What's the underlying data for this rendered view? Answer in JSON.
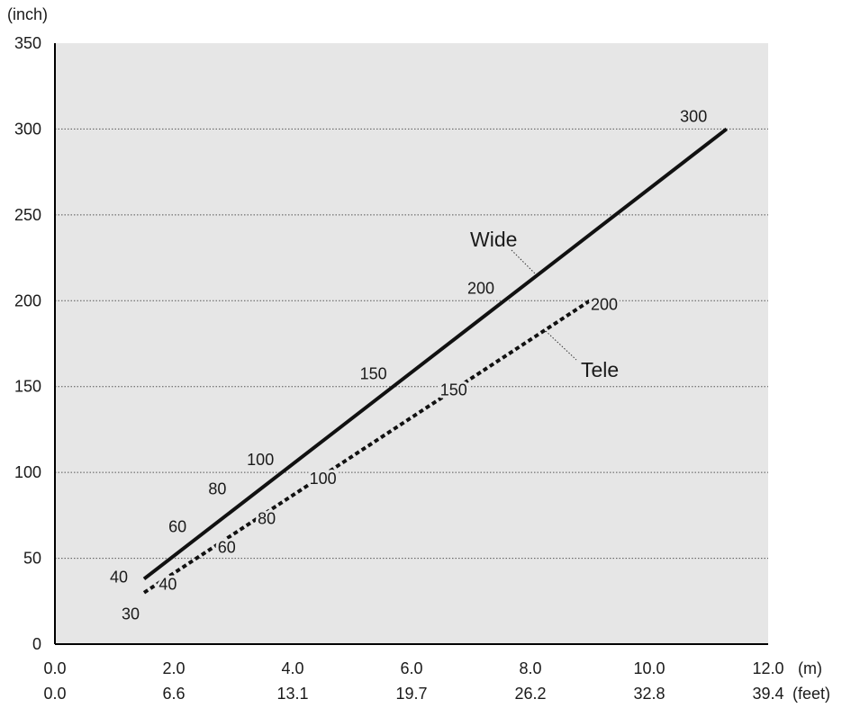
{
  "chart_data": {
    "type": "line",
    "y_unit": "(inch)",
    "x_unit_m": "(m)",
    "x_unit_feet": "(feet)",
    "ylim": [
      0,
      350
    ],
    "y_ticks": [
      "0",
      "50",
      "100",
      "150",
      "200",
      "250",
      "300",
      "350"
    ],
    "xlim": [
      0,
      12
    ],
    "x_ticks_m": [
      "0.0",
      "2.0",
      "4.0",
      "6.0",
      "8.0",
      "10.0",
      "12.0"
    ],
    "x_ticks_feet": [
      "0.0",
      "6.6",
      "13.1",
      "19.7",
      "26.2",
      "32.8",
      "39.4"
    ],
    "grid": "horizontal dotted",
    "series": [
      {
        "name": "Wide",
        "style": "solid",
        "x": [
          1.5,
          11.3
        ],
        "y": [
          38,
          300
        ],
        "labels": [
          {
            "text": "40",
            "x": 1.5,
            "y": 40
          },
          {
            "text": "60",
            "x": 2.2,
            "y": 60
          },
          {
            "text": "80",
            "x": 2.9,
            "y": 80
          },
          {
            "text": "100",
            "x": 3.7,
            "y": 100
          },
          {
            "text": "150",
            "x": 5.6,
            "y": 150
          },
          {
            "text": "200",
            "x": 7.5,
            "y": 200
          },
          {
            "text": "300",
            "x": 11.2,
            "y": 300
          }
        ]
      },
      {
        "name": "Tele",
        "style": "dashed",
        "x": [
          1.5,
          9.0
        ],
        "y": [
          30,
          200
        ],
        "labels": [
          {
            "text": "30",
            "x": 1.5,
            "y": 30
          },
          {
            "text": "40",
            "x": 1.9,
            "y": 40
          },
          {
            "text": "60",
            "x": 2.8,
            "y": 60
          },
          {
            "text": "80",
            "x": 3.7,
            "y": 80
          },
          {
            "text": "100",
            "x": 4.6,
            "y": 100
          },
          {
            "text": "150",
            "x": 6.8,
            "y": 150
          },
          {
            "text": "200",
            "x": 9.0,
            "y": 200
          }
        ]
      }
    ]
  }
}
